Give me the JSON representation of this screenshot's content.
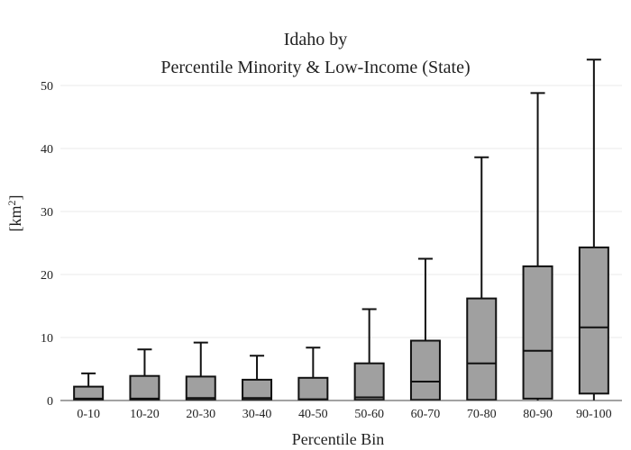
{
  "chart_data": {
    "type": "box",
    "title_line1": "Idaho  by",
    "title_line2": "Percentile Minority & Low-Income (State)",
    "xlabel": "Percentile Bin",
    "ylabel_base": "[km",
    "ylabel_sup": "2",
    "ylabel_end": "]",
    "ylim": [
      0,
      54
    ],
    "yticks": [
      0,
      10,
      20,
      30,
      40,
      50
    ],
    "grid": true,
    "categories": [
      "0-10",
      "10-20",
      "20-30",
      "30-40",
      "40-50",
      "50-60",
      "60-70",
      "70-80",
      "80-90",
      "90-100"
    ],
    "boxes": [
      {
        "min": 0,
        "q1": 0.1,
        "median": 0.3,
        "q3": 2.2,
        "max": 4.3
      },
      {
        "min": 0,
        "q1": 0.1,
        "median": 0.3,
        "q3": 3.9,
        "max": 8.1
      },
      {
        "min": 0,
        "q1": 0.1,
        "median": 0.4,
        "q3": 3.8,
        "max": 9.2
      },
      {
        "min": 0,
        "q1": 0.1,
        "median": 0.4,
        "q3": 3.3,
        "max": 7.1
      },
      {
        "min": 0,
        "q1": 0.1,
        "median": 0.2,
        "q3": 3.6,
        "max": 8.4
      },
      {
        "min": 0,
        "q1": 0.1,
        "median": 0.5,
        "q3": 5.9,
        "max": 14.5
      },
      {
        "min": 0,
        "q1": 0.1,
        "median": 3.0,
        "q3": 9.5,
        "max": 22.5
      },
      {
        "min": 0,
        "q1": 0.1,
        "median": 5.9,
        "q3": 16.2,
        "max": 38.6
      },
      {
        "min": 0,
        "q1": 0.3,
        "median": 7.9,
        "q3": 21.3,
        "max": 48.8
      },
      {
        "min": 0,
        "q1": 1.1,
        "median": 11.6,
        "q3": 24.3,
        "max": 54.1
      }
    ],
    "colors": {
      "box_fill": "#a0a0a0",
      "box_stroke": "#111111"
    }
  }
}
